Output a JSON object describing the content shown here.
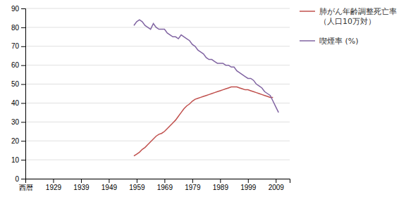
{
  "chart_data": {
    "type": "line",
    "xlim": [
      1919,
      2014
    ],
    "ylim": [
      0,
      90
    ],
    "xticks": [
      {
        "value": 1919,
        "label": "西暦"
      },
      1929,
      1939,
      1949,
      1959,
      1969,
      1979,
      1989,
      1999,
      2009
    ],
    "yticks": [
      0,
      10,
      20,
      30,
      40,
      50,
      60,
      70,
      80,
      90
    ],
    "grid": true,
    "legend": "right",
    "series": [
      {
        "name": "肺がん年齢調整死亡率\n（人口10万対）",
        "color": "#c0504d",
        "x": [
          1958,
          1959,
          1960,
          1961,
          1962,
          1963,
          1964,
          1965,
          1966,
          1967,
          1968,
          1969,
          1970,
          1971,
          1972,
          1973,
          1974,
          1975,
          1976,
          1977,
          1978,
          1979,
          1980,
          1981,
          1982,
          1983,
          1984,
          1985,
          1986,
          1987,
          1988,
          1989,
          1990,
          1991,
          1992,
          1993,
          1994,
          1995,
          1996,
          1997,
          1998,
          1999,
          2000,
          2001,
          2002,
          2003,
          2004,
          2005,
          2006,
          2007,
          2008
        ],
        "values": [
          12,
          13,
          14,
          15.5,
          16.5,
          18,
          19.5,
          21,
          22.5,
          23.5,
          24,
          25,
          26.5,
          28,
          29.5,
          31,
          33,
          35,
          37,
          38.5,
          39.5,
          41,
          42,
          42.5,
          43,
          43.5,
          44,
          44.5,
          45,
          45.5,
          46,
          46.5,
          47,
          47.5,
          48,
          48.5,
          48.5,
          48.5,
          48,
          47.5,
          47,
          47,
          46.5,
          46,
          45.5,
          45,
          44.5,
          44,
          43.5,
          43,
          43
        ]
      },
      {
        "name": "喫煙率 (%)",
        "color": "#8064a2",
        "x": [
          1958,
          1959,
          1960,
          1961,
          1962,
          1963,
          1964,
          1965,
          1966,
          1967,
          1968,
          1969,
          1970,
          1971,
          1972,
          1973,
          1974,
          1975,
          1976,
          1977,
          1978,
          1979,
          1980,
          1981,
          1982,
          1983,
          1984,
          1985,
          1986,
          1987,
          1988,
          1989,
          1990,
          1991,
          1992,
          1993,
          1994,
          1995,
          1996,
          1997,
          1998,
          1999,
          2000,
          2001,
          2002,
          2003,
          2004,
          2005,
          2006,
          2007,
          2008,
          2009,
          2010
        ],
        "values": [
          81,
          83,
          84,
          83,
          81,
          80,
          79,
          82,
          80,
          79,
          79,
          79,
          77,
          76,
          75,
          75,
          74,
          76,
          75,
          74,
          73,
          71,
          70,
          68,
          67,
          66,
          64,
          63,
          63,
          62,
          61,
          61,
          61,
          60,
          60,
          59,
          59,
          57,
          56,
          55,
          54,
          53,
          53,
          52,
          50,
          49,
          48,
          46,
          45,
          44,
          41,
          38,
          35
        ]
      }
    ]
  }
}
